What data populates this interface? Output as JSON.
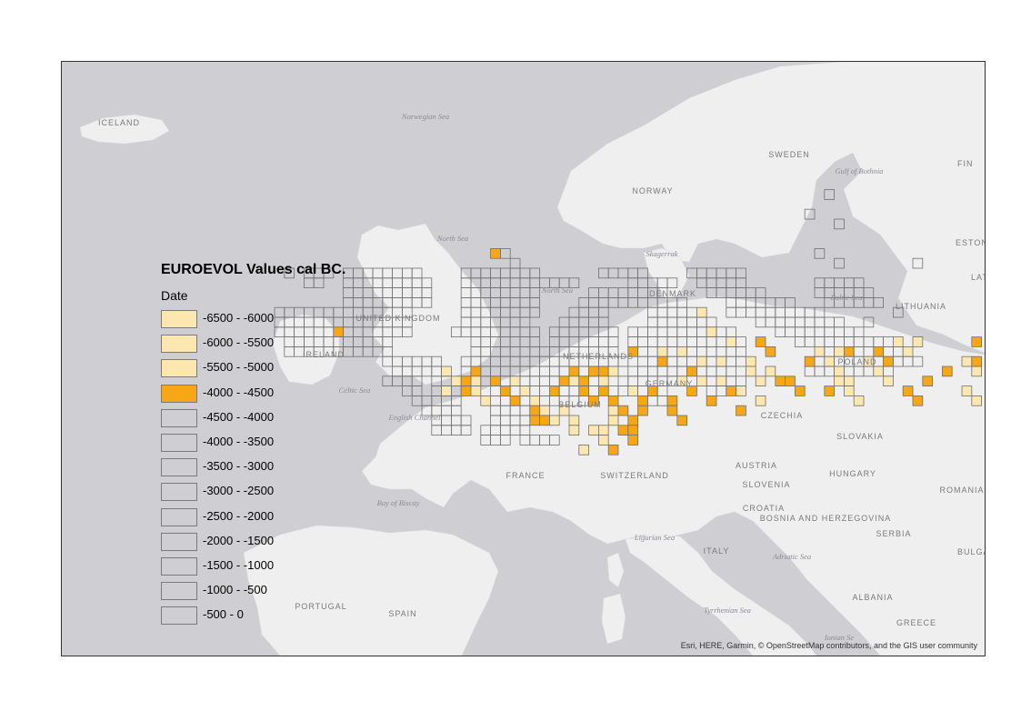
{
  "legend": {
    "title": "EUROEVOL Values cal BC.",
    "subtitle": "Date",
    "items": [
      {
        "label": "-6500 - -6000",
        "color": "#fde7b0"
      },
      {
        "label": "-6000 - -5500",
        "color": "#fde7b0"
      },
      {
        "label": "-5500 - -5000",
        "color": "#fde7b0"
      },
      {
        "label": "-4000 - -4500",
        "color": "#f7a616"
      },
      {
        "label": "-4500 - -4000",
        "color": "transparent"
      },
      {
        "label": "-4000 - -3500",
        "color": "transparent"
      },
      {
        "label": "-3500 - -3000",
        "color": "transparent"
      },
      {
        "label": "-3000 - -2500",
        "color": "transparent"
      },
      {
        "label": "-2500 - -2000",
        "color": "transparent"
      },
      {
        "label": "-2000 - -1500",
        "color": "transparent"
      },
      {
        "label": "-1500 - -1000",
        "color": "transparent"
      },
      {
        "label": "-1000 - -500",
        "color": "transparent"
      },
      {
        "label": "-500 - 0",
        "color": "transparent"
      }
    ]
  },
  "map_labels": {
    "countries": [
      {
        "id": "iceland",
        "text": "ICELAND"
      },
      {
        "id": "norway",
        "text": "NORWAY"
      },
      {
        "id": "sweden",
        "text": "SWEDEN"
      },
      {
        "id": "finland",
        "text": "FIN"
      },
      {
        "id": "estonia",
        "text": "ESTONI"
      },
      {
        "id": "latvia",
        "text": "LAT"
      },
      {
        "id": "lithuania",
        "text": "LITHUANIA"
      },
      {
        "id": "united-kingdom",
        "text": "UNITED KINGDOM"
      },
      {
        "id": "ireland",
        "text": "IRELAND"
      },
      {
        "id": "denmark",
        "text": "DENMARK"
      },
      {
        "id": "netherlands",
        "text": "NETHERLANDS"
      },
      {
        "id": "belgium",
        "text": "BELGIUM"
      },
      {
        "id": "germany",
        "text": "GERMANY"
      },
      {
        "id": "poland",
        "text": "POLAND"
      },
      {
        "id": "czechia",
        "text": "CZECHIA"
      },
      {
        "id": "slovakia",
        "text": "SLOVAKIA"
      },
      {
        "id": "austria",
        "text": "AUSTRIA"
      },
      {
        "id": "hungary",
        "text": "HUNGARY"
      },
      {
        "id": "romania",
        "text": "ROMANIA"
      },
      {
        "id": "france",
        "text": "FRANCE"
      },
      {
        "id": "switzerland",
        "text": "SWITZERLAND"
      },
      {
        "id": "slovenia",
        "text": "SLOVENIA"
      },
      {
        "id": "croatia",
        "text": "CROATIA"
      },
      {
        "id": "bosnia",
        "text": "BOSNIA AND HERZEGOVINA"
      },
      {
        "id": "serbia",
        "text": "SERBIA"
      },
      {
        "id": "bulgaria",
        "text": "BULGA"
      },
      {
        "id": "italy",
        "text": "ITALY"
      },
      {
        "id": "albania",
        "text": "ALBANIA"
      },
      {
        "id": "greece",
        "text": "GREECE"
      },
      {
        "id": "portugal",
        "text": "PORTUGAL"
      },
      {
        "id": "spain",
        "text": "SPAIN"
      }
    ],
    "seas": [
      {
        "id": "norwegian-sea",
        "text": "Norwegian Sea"
      },
      {
        "id": "north-sea-1",
        "text": "North Sea"
      },
      {
        "id": "north-sea-2",
        "text": "North Sea"
      },
      {
        "id": "skagerrak",
        "text": "Skagerrak"
      },
      {
        "id": "gulf-bothnia",
        "text": "Gulf of Bothnia"
      },
      {
        "id": "baltic-sea",
        "text": "Baltic Sea"
      },
      {
        "id": "celtic-sea",
        "text": "Celtic Sea"
      },
      {
        "id": "english-channel",
        "text": "English Channel"
      },
      {
        "id": "bay-of-biscay",
        "text": "Bay of Biscay"
      },
      {
        "id": "ligurian-sea",
        "text": "Ligurian Sea"
      },
      {
        "id": "adriatic-sea",
        "text": "Adriatic Sea"
      },
      {
        "id": "tyrrhenian-sea",
        "text": "Tyrrhenian Sea"
      },
      {
        "id": "ionian-sea",
        "text": "Ionian Se"
      }
    ]
  },
  "attribution": "Esri, HERE, Garmin, © OpenStreetMap contributors, and the GIS user community",
  "colors": {
    "water": "#cfcfd3",
    "land": "#f0f0f0",
    "grid_outline": "#6f6f6f",
    "early_fill": "#fde7b0",
    "mid_fill": "#f7a616"
  }
}
